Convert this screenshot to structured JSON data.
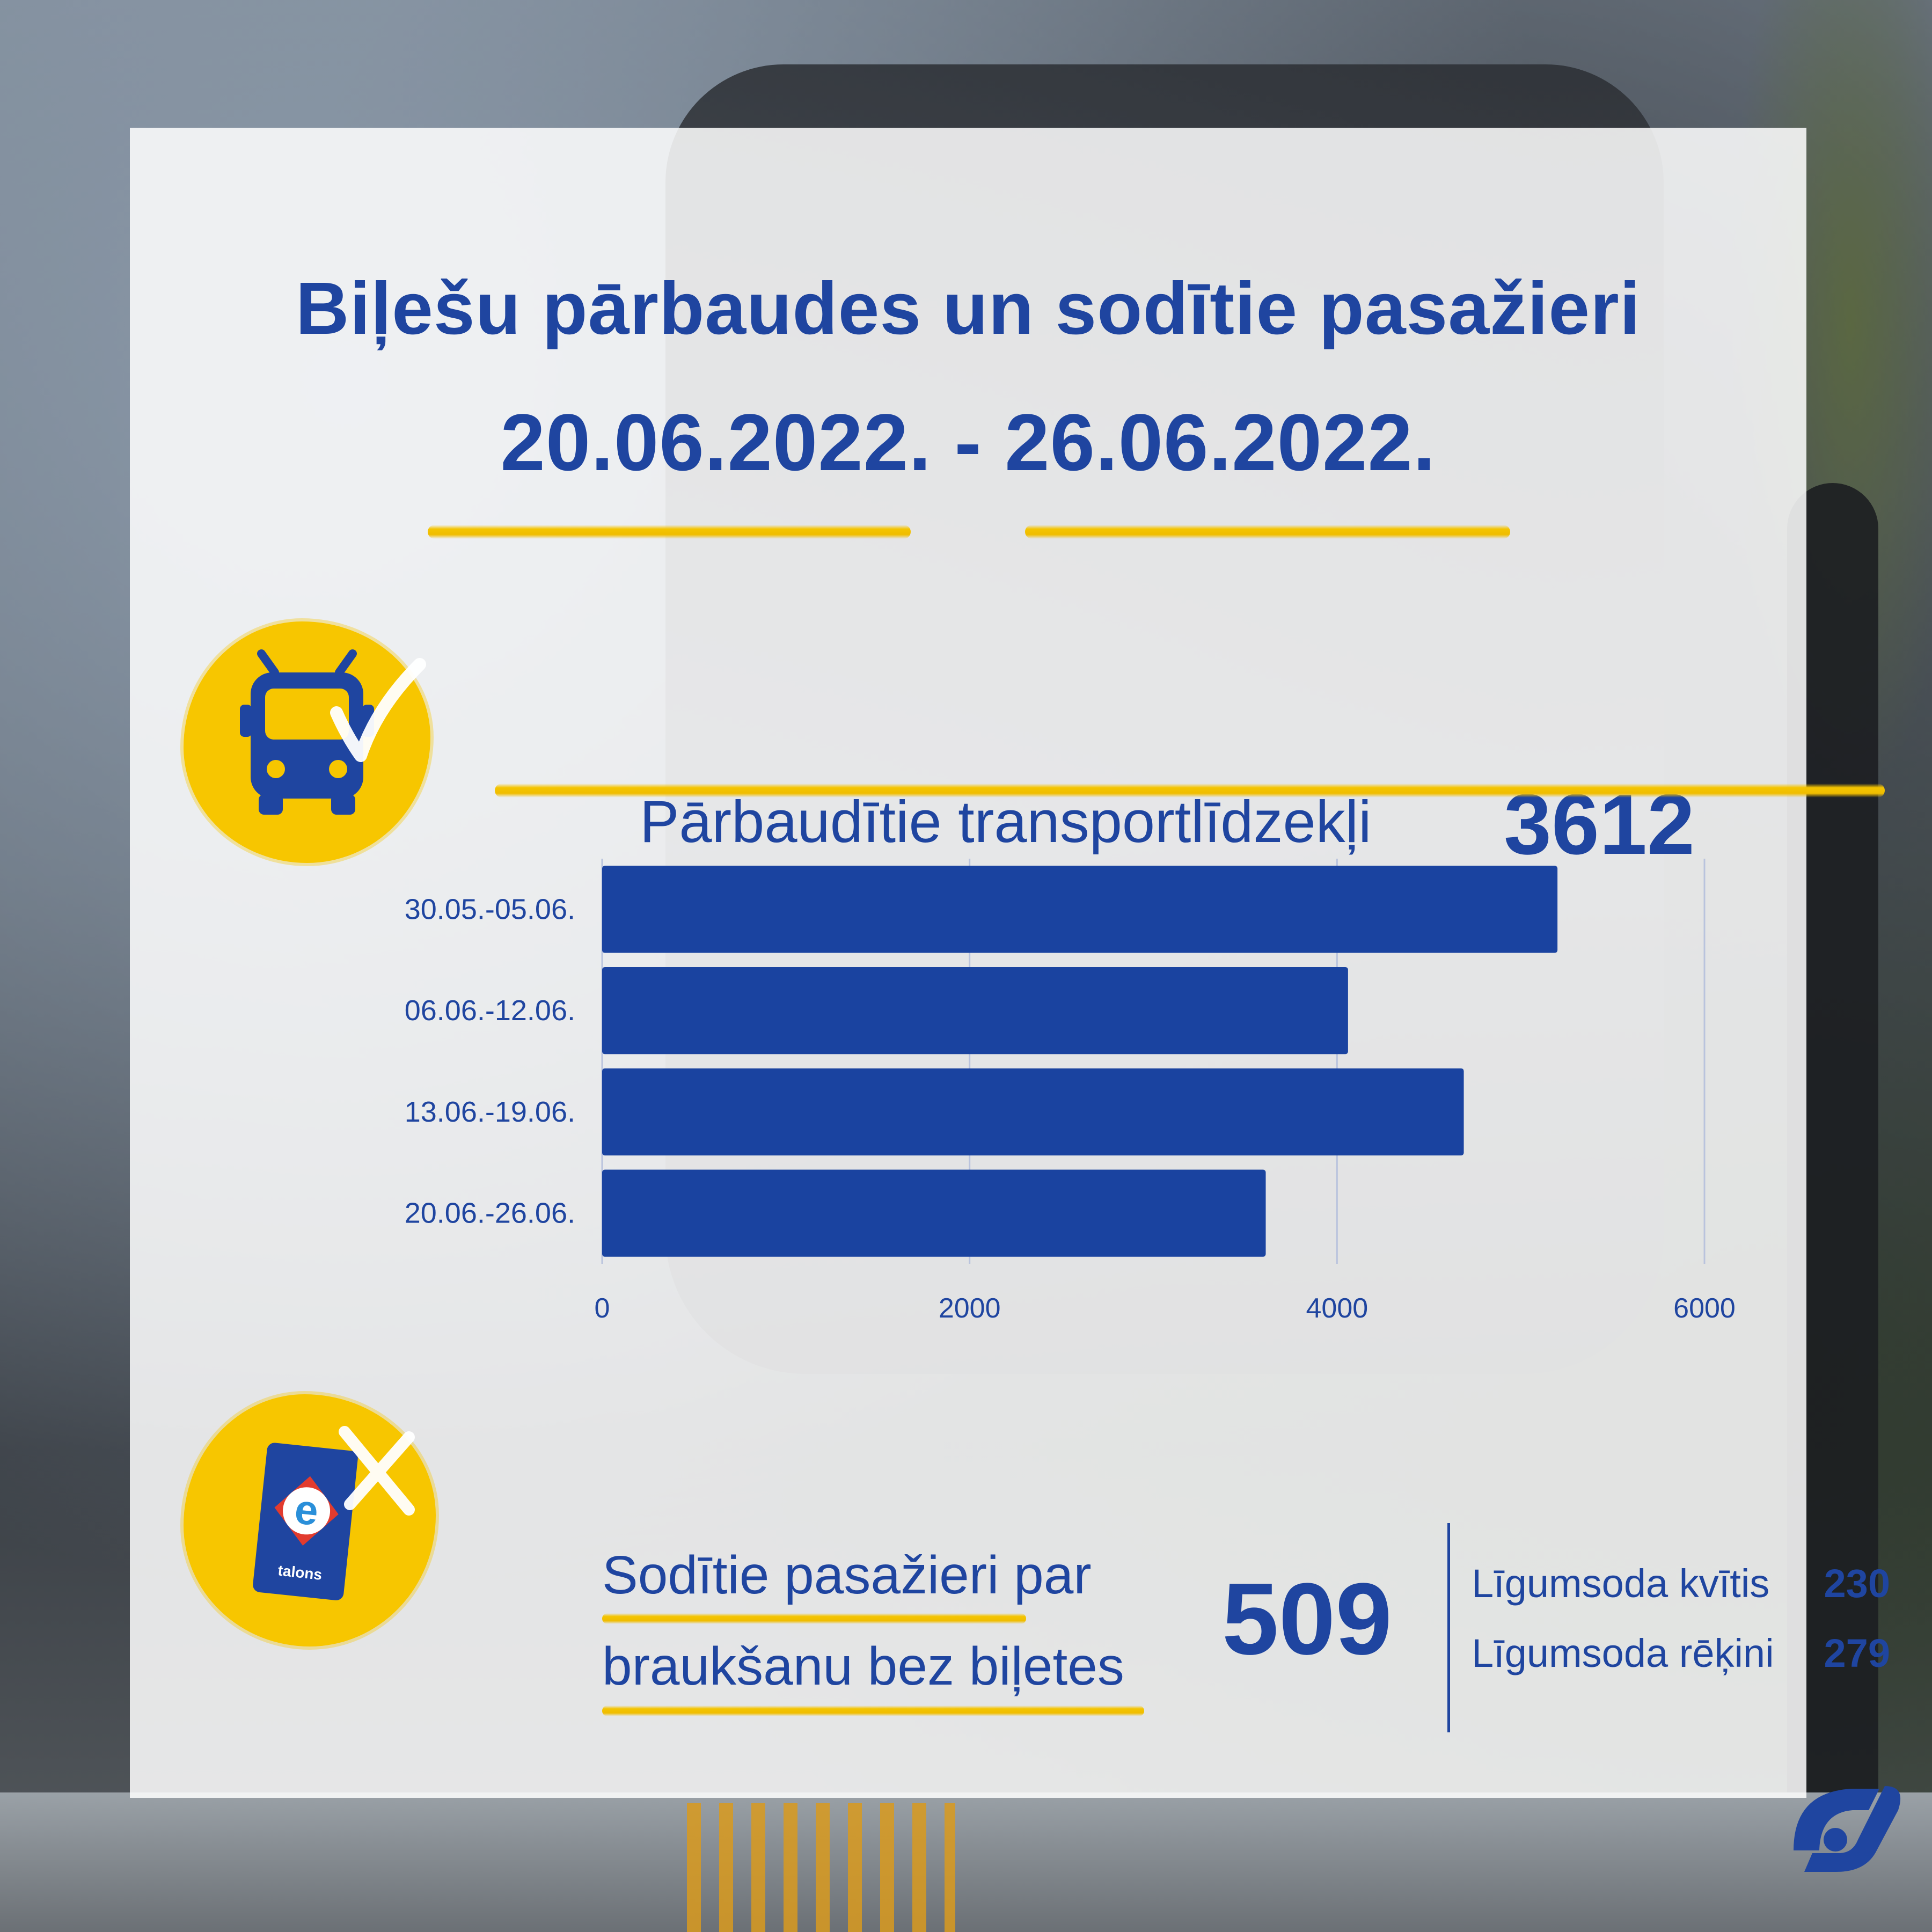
{
  "title": {
    "line1": "Biļešu pārbaudes un sodītie pasažieri",
    "line2": "20.06.2022. - 26.06.2022."
  },
  "checked": {
    "label": "Pārbaudītie transportlīdzekļi",
    "value": "3612",
    "icon": "bus-check-icon"
  },
  "chart_data": {
    "type": "bar",
    "orientation": "horizontal",
    "categories": [
      "30.05.-05.06.",
      "06.06.-12.06.",
      "13.06.-19.06.",
      "20.06.-26.06."
    ],
    "values": [
      5200,
      4060,
      4690,
      3612
    ],
    "xticks": [
      0,
      2000,
      4000,
      6000
    ],
    "xlim": [
      0,
      6000
    ],
    "bar_color": "#1a43a0",
    "grid": true
  },
  "fined": {
    "label_line1": "Sodītie pasažieri par",
    "label_line2": "braukšanu bez biļetes",
    "value": "509",
    "icon": "e-talons-card-cross-icon",
    "card_text": "talons",
    "card_prefix": "e",
    "breakdown": [
      {
        "label": "Līgumsoda kvītis",
        "value": "230"
      },
      {
        "label": "Līgumsoda rēķini",
        "value": "279"
      }
    ]
  },
  "colors": {
    "primary_blue": "#1f45a0",
    "accent_yellow": "#f7c600"
  }
}
